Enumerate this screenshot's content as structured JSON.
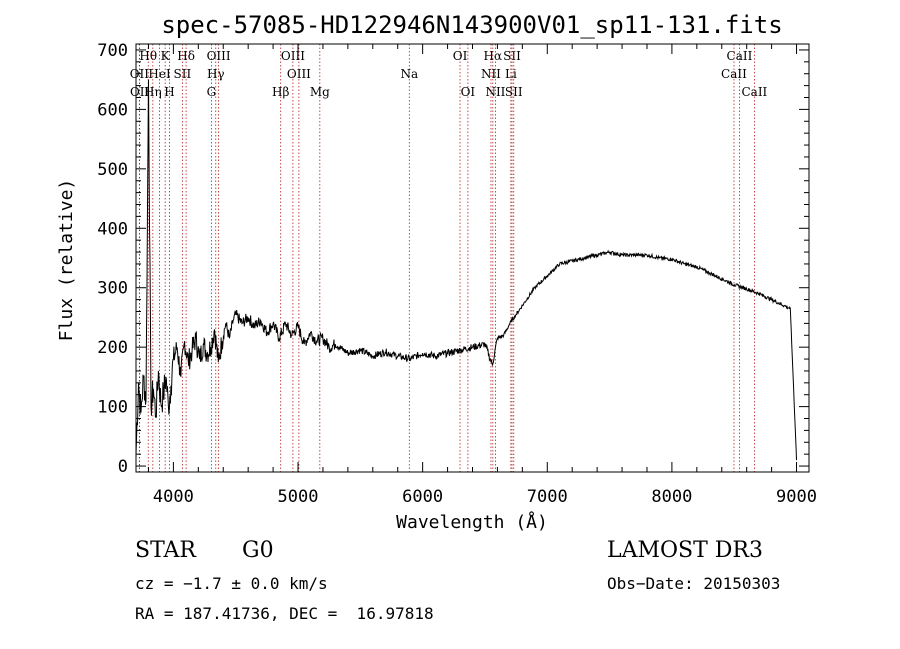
{
  "chart_data": {
    "type": "line",
    "title": "spec-57085-HD122946N143900V01_sp11-131.fits",
    "xlabel": "Wavelength (Å)",
    "ylabel": "Flux (relative)",
    "xlim": [
      3700,
      9100
    ],
    "ylim": [
      -10,
      710
    ],
    "x_ticks": [
      4000,
      5000,
      6000,
      7000,
      8000,
      9000
    ],
    "y_ticks": [
      0,
      100,
      200,
      300,
      400,
      500,
      600,
      700
    ],
    "grid": false,
    "series": [
      {
        "x": [
          3700,
          3720,
          3740,
          3760,
          3780,
          3800,
          3820,
          3840,
          3860,
          3880,
          3900,
          3920,
          3940,
          3960,
          3980,
          4000,
          4030,
          4060,
          4090,
          4120,
          4150,
          4180,
          4210,
          4240,
          4270,
          4300,
          4330,
          4360,
          4390,
          4420,
          4450,
          4480,
          4500,
          4550,
          4600,
          4650,
          4700,
          4750,
          4800,
          4850,
          4900,
          4950,
          5000,
          5050,
          5100,
          5150,
          5200,
          5250,
          5300,
          5400,
          5500,
          5600,
          5700,
          5800,
          5900,
          6000,
          6100,
          6200,
          6300,
          6400,
          6500,
          6560,
          6600,
          6650,
          6700,
          6750,
          6800,
          6900,
          7000,
          7100,
          7200,
          7300,
          7400,
          7500,
          7600,
          7700,
          7800,
          7900,
          8000,
          8100,
          8200,
          8300,
          8400,
          8500,
          8600,
          8700,
          8800,
          8900,
          8950,
          9000
        ],
        "y": [
          20,
          140,
          90,
          150,
          110,
          650,
          100,
          130,
          85,
          160,
          105,
          120,
          150,
          100,
          135,
          180,
          200,
          150,
          210,
          175,
          195,
          215,
          180,
          205,
          190,
          200,
          230,
          175,
          210,
          240,
          215,
          245,
          255,
          240,
          250,
          235,
          245,
          225,
          240,
          215,
          240,
          220,
          235,
          205,
          225,
          210,
          215,
          200,
          205,
          190,
          195,
          185,
          192,
          185,
          180,
          190,
          185,
          190,
          195,
          200,
          205,
          170,
          215,
          220,
          240,
          255,
          270,
          300,
          320,
          340,
          345,
          350,
          355,
          360,
          355,
          355,
          355,
          350,
          348,
          340,
          335,
          325,
          315,
          305,
          298,
          290,
          280,
          270,
          265,
          10
        ]
      }
    ],
    "spectral_lines": [
      {
        "label": "Hθ",
        "x": 3798,
        "row": 0
      },
      {
        "label": "OII",
        "x": 3727,
        "row": 1
      },
      {
        "label": "OII",
        "x": 3729,
        "row": 2
      },
      {
        "label": "Hη",
        "x": 3835,
        "row": 2
      },
      {
        "label": "K",
        "x": 3934,
        "row": 0
      },
      {
        "label": "HeI",
        "x": 3889,
        "row": 1
      },
      {
        "label": "H",
        "x": 3969,
        "row": 2
      },
      {
        "label": "Hδ",
        "x": 4102,
        "row": 0
      },
      {
        "label": "SII",
        "x": 4072,
        "row": 1
      },
      {
        "label": "OIII",
        "x": 4363,
        "row": 0
      },
      {
        "label": "Hγ",
        "x": 4340,
        "row": 1
      },
      {
        "label": "G",
        "x": 4305,
        "row": 2
      },
      {
        "label": "Hβ",
        "x": 4861,
        "row": 2
      },
      {
        "label": "OIII",
        "x": 4959,
        "row": 0
      },
      {
        "label": "OIII",
        "x": 5007,
        "row": 1
      },
      {
        "label": "Mg",
        "x": 5175,
        "row": 2
      },
      {
        "label": "Na",
        "x": 5893,
        "row": 1
      },
      {
        "label": "OI",
        "x": 6300,
        "row": 0
      },
      {
        "label": "OI",
        "x": 6363,
        "row": 2
      },
      {
        "label": "Hα",
        "x": 6563,
        "row": 0
      },
      {
        "label": "NII",
        "x": 6548,
        "row": 1
      },
      {
        "label": "NII",
        "x": 6584,
        "row": 2
      },
      {
        "label": "SII",
        "x": 6717,
        "row": 0
      },
      {
        "label": "Li",
        "x": 6708,
        "row": 1
      },
      {
        "label": "SII",
        "x": 6731,
        "row": 2
      },
      {
        "label": "CaII",
        "x": 8542,
        "row": 0
      },
      {
        "label": "CaII",
        "x": 8498,
        "row": 1
      },
      {
        "label": "CaII",
        "x": 8662,
        "row": 2
      }
    ]
  },
  "info": {
    "class_label": "STAR",
    "subclass": "G0",
    "survey": "LAMOST DR3",
    "cz_text": "cz = −1.7 ± 0.0 km/s",
    "obs_date": "Obs−Date: 20150303",
    "coords": "RA = 187.41736, DEC =  16.97818"
  }
}
